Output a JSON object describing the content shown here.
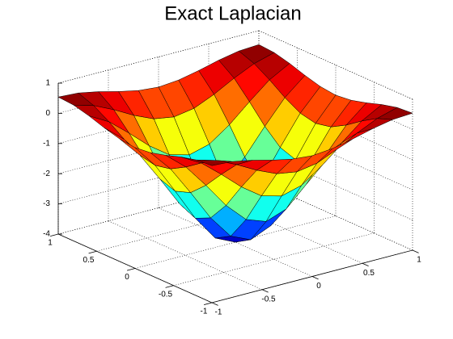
{
  "chart_data": {
    "type": "surface",
    "title": "Exact Laplacian",
    "x": [
      -1,
      -0.8,
      -0.6,
      -0.4,
      -0.2,
      0,
      0.2,
      0.4,
      0.6,
      0.8,
      1
    ],
    "y": [
      -1,
      -0.8,
      -0.6,
      -0.4,
      -0.2,
      0,
      0.2,
      0.4,
      0.6,
      0.8,
      1
    ],
    "z": [
      [
        0.54,
        0.5,
        0.37,
        0.2,
        0.06,
        0,
        0.06,
        0.2,
        0.37,
        0.5,
        0.54
      ],
      [
        0.5,
        0.31,
        0,
        -0.36,
        -0.65,
        -0.76,
        -0.65,
        -0.36,
        0,
        0.31,
        0.5
      ],
      [
        0.37,
        0,
        -0.55,
        -1.14,
        -1.61,
        -1.79,
        -1.61,
        -1.14,
        -0.55,
        0,
        0.37
      ],
      [
        0.2,
        -0.36,
        -1.14,
        -1.98,
        -2.62,
        -2.86,
        -2.62,
        -1.98,
        -1.14,
        -0.36,
        0.2
      ],
      [
        0.06,
        -0.65,
        -1.61,
        -2.62,
        -3.4,
        -3.69,
        -3.4,
        -2.62,
        -1.61,
        -0.65,
        0.06
      ],
      [
        0,
        -0.76,
        -1.79,
        -2.86,
        -3.69,
        -4,
        -3.69,
        -2.86,
        -1.79,
        -0.76,
        0
      ],
      [
        0.06,
        -0.65,
        -1.61,
        -2.62,
        -3.4,
        -3.69,
        -3.4,
        -2.62,
        -1.61,
        -0.65,
        0.06
      ],
      [
        0.2,
        -0.36,
        -1.14,
        -1.98,
        -2.62,
        -2.86,
        -2.62,
        -1.98,
        -1.14,
        -0.36,
        0.2
      ],
      [
        0.37,
        0,
        -0.55,
        -1.14,
        -1.61,
        -1.79,
        -1.61,
        -1.14,
        -0.55,
        0,
        0.37
      ],
      [
        0.5,
        0.31,
        0,
        -0.36,
        -0.65,
        -0.76,
        -0.65,
        -0.36,
        0,
        0.31,
        0.5
      ],
      [
        0.54,
        0.5,
        0.37,
        0.2,
        0.06,
        0,
        0.06,
        0.2,
        0.37,
        0.5,
        0.54
      ]
    ],
    "xlim": [
      -1,
      1
    ],
    "ylim": [
      -1,
      1
    ],
    "zlim": [
      -4,
      1
    ],
    "xticks": [
      -1,
      -0.5,
      0,
      0.5,
      1
    ],
    "yticks": [
      -1,
      -0.5,
      0,
      0.5,
      1
    ],
    "zticks": [
      -4,
      -3,
      -2,
      -1,
      0,
      1
    ],
    "colormap": "jet",
    "grid": true
  }
}
